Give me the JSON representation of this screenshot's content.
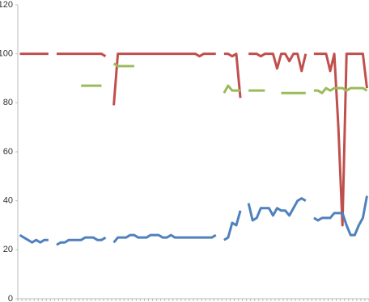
{
  "chart_data": {
    "type": "line",
    "categories": [
      null,
      null,
      null,
      null,
      null,
      null,
      null,
      null,
      null,
      null,
      null,
      null,
      null,
      null,
      null,
      null,
      null,
      null,
      null,
      null,
      null,
      null,
      null,
      null,
      null,
      null,
      null,
      null,
      null,
      null,
      null,
      null,
      null,
      null,
      null,
      null,
      null,
      null,
      null,
      null,
      null,
      null,
      null,
      null,
      null,
      null,
      null,
      null,
      null,
      null,
      null,
      null,
      null,
      null,
      null,
      null,
      null,
      null,
      null,
      null,
      null,
      null,
      null,
      null,
      null,
      null,
      null,
      null,
      null,
      null,
      null,
      null,
      null,
      null,
      null,
      null,
      null,
      null,
      null,
      null,
      null,
      null,
      null,
      null,
      null,
      null
    ],
    "series": [
      {
        "color": "#c0504d",
        "values": [
          100,
          100,
          100,
          100,
          100,
          100,
          100,
          100,
          null,
          100,
          100,
          100,
          100,
          100,
          100,
          100,
          100,
          100,
          100,
          100,
          100,
          99,
          null,
          79,
          100,
          100,
          100,
          100,
          100,
          100,
          100,
          100,
          100,
          100,
          100,
          100,
          100,
          100,
          100,
          100,
          100,
          100,
          100,
          100,
          99,
          100,
          100,
          100,
          100,
          null,
          100,
          100,
          99,
          100,
          82,
          null,
          100,
          100,
          100,
          99,
          100,
          100,
          100,
          94,
          100,
          100,
          97,
          100,
          100,
          93,
          100,
          null,
          100,
          100,
          100,
          100,
          93,
          100,
          70,
          30,
          100,
          100,
          100,
          100,
          100,
          86
        ]
      },
      {
        "color": "#9bbb59",
        "values": [
          null,
          null,
          null,
          null,
          null,
          null,
          null,
          null,
          null,
          null,
          null,
          null,
          null,
          null,
          null,
          87,
          87,
          87,
          87,
          87,
          87,
          null,
          null,
          96,
          95,
          95,
          95,
          95,
          95,
          null,
          null,
          null,
          null,
          null,
          null,
          null,
          null,
          null,
          null,
          null,
          null,
          null,
          null,
          null,
          null,
          null,
          null,
          null,
          null,
          null,
          84,
          87,
          85,
          85,
          85,
          null,
          85,
          85,
          85,
          85,
          85,
          null,
          null,
          null,
          84,
          84,
          84,
          84,
          84,
          84,
          84,
          null,
          85,
          85,
          84,
          86,
          85,
          86,
          86,
          86,
          85,
          86,
          86,
          86,
          86,
          85
        ]
      },
      {
        "color": "#4f81bd",
        "values": [
          26,
          25,
          24,
          23,
          24,
          23,
          24,
          24,
          null,
          22,
          23,
          23,
          24,
          24,
          24,
          24,
          25,
          25,
          25,
          24,
          24,
          25,
          null,
          23,
          25,
          25,
          25,
          26,
          26,
          25,
          25,
          25,
          26,
          26,
          26,
          25,
          25,
          26,
          25,
          25,
          25,
          25,
          25,
          25,
          25,
          25,
          25,
          25,
          26,
          null,
          24,
          25,
          31,
          30,
          36,
          null,
          39,
          32,
          33,
          37,
          37,
          37,
          34,
          37,
          36,
          36,
          34,
          37,
          40,
          41,
          40,
          null,
          33,
          32,
          33,
          33,
          33,
          35,
          35,
          35,
          30,
          26,
          26,
          30,
          33,
          42
        ]
      }
    ],
    "ylim": [
      0,
      120
    ],
    "yticks": [
      0,
      20,
      40,
      60,
      80,
      100,
      120
    ],
    "grid": false
  }
}
